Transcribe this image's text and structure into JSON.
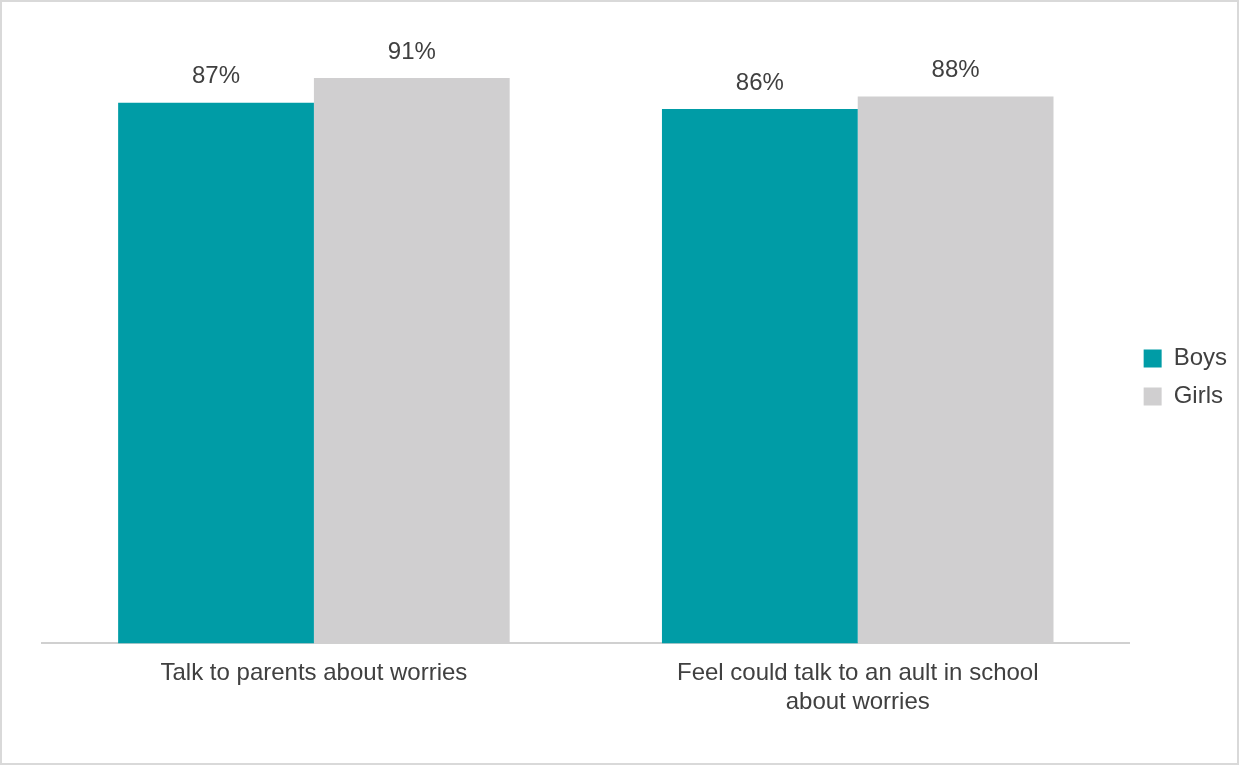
{
  "chart_data": {
    "type": "bar",
    "categories": [
      "Talk to parents about worries",
      "Feel could talk to an ault in school about worries"
    ],
    "series": [
      {
        "name": "Boys",
        "color": "#009ca6",
        "values": [
          87,
          86
        ],
        "value_labels": [
          "87%",
          "86%"
        ]
      },
      {
        "name": "Girls",
        "color": "#d0cfd0",
        "values": [
          91,
          88
        ],
        "value_labels": [
          "91%",
          "88%"
        ]
      }
    ],
    "grid": false,
    "legend": "right",
    "tick_labels": "x"
  }
}
